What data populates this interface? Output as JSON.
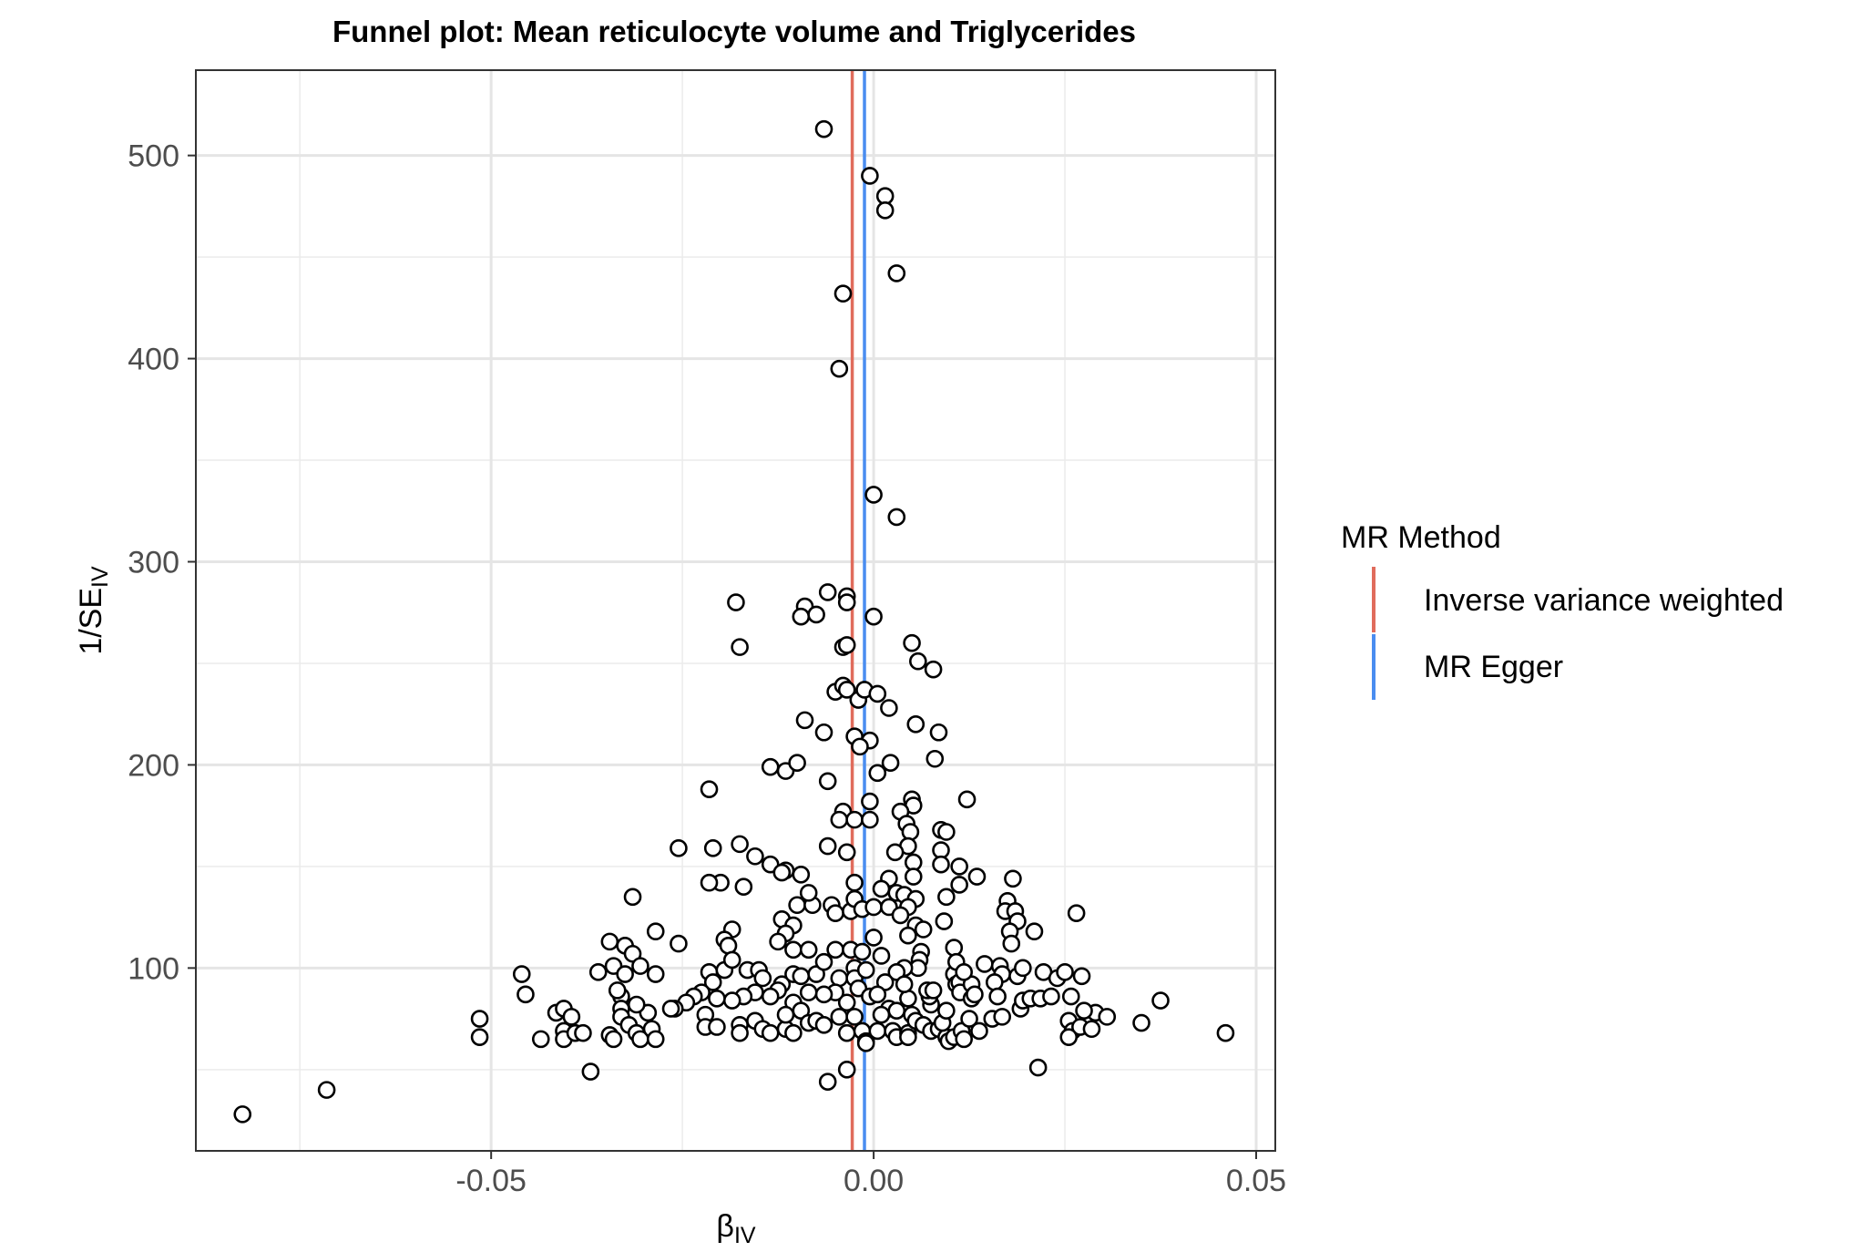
{
  "chart_data": {
    "type": "scatter",
    "title": "Funnel plot: Mean reticulocyte volume and Triglycerides",
    "xlabel": {
      "main": "β",
      "sub": "IV"
    },
    "ylabel": {
      "main": "1/SE",
      "sub": "IV"
    },
    "xlim": [
      -0.0886,
      0.0525
    ],
    "ylim": [
      10,
      542
    ],
    "x_ticks": [
      -0.05,
      0.0,
      0.05
    ],
    "x_tick_labels": [
      "-0.05",
      "0.00",
      "0.05"
    ],
    "y_ticks": [
      100,
      200,
      300,
      400,
      500
    ],
    "y_tick_labels": [
      "100",
      "200",
      "300",
      "400",
      "500"
    ],
    "grid": true,
    "legend": {
      "title": "MR Method",
      "position": "right",
      "items": [
        {
          "label": "Inverse variance weighted",
          "color": "#e06c5c"
        },
        {
          "label": "MR Egger",
          "color": "#4a8df0"
        }
      ]
    },
    "reference_lines": [
      {
        "method": "Inverse variance weighted",
        "x": -0.0028,
        "color": "#e06c5c"
      },
      {
        "method": "MR Egger",
        "x": -0.0012,
        "color": "#4a8df0"
      }
    ],
    "points": [
      [
        -0.0065,
        513
      ],
      [
        -0.0005,
        490
      ],
      [
        0.0015,
        480
      ],
      [
        0.0015,
        473
      ],
      [
        0.003,
        442
      ],
      [
        -0.004,
        432
      ],
      [
        -0.0045,
        395
      ],
      [
        0.0,
        333
      ],
      [
        0.003,
        322
      ],
      [
        -0.018,
        280
      ],
      [
        -0.006,
        285
      ],
      [
        -0.0035,
        283
      ],
      [
        -0.0035,
        280
      ],
      [
        -0.009,
        278
      ],
      [
        -0.0095,
        273
      ],
      [
        -0.0075,
        274
      ],
      [
        0.0,
        273
      ],
      [
        -0.0175,
        258
      ],
      [
        -0.004,
        258
      ],
      [
        -0.0035,
        259
      ],
      [
        0.005,
        260
      ],
      [
        0.0058,
        251
      ],
      [
        0.0078,
        247
      ],
      [
        -0.005,
        236
      ],
      [
        -0.004,
        239
      ],
      [
        -0.0035,
        237
      ],
      [
        -0.002,
        232
      ],
      [
        -0.0012,
        237
      ],
      [
        0.0005,
        235
      ],
      [
        0.002,
        228
      ],
      [
        -0.009,
        222
      ],
      [
        -0.0065,
        216
      ],
      [
        -0.0025,
        214
      ],
      [
        -0.0005,
        212
      ],
      [
        -0.0018,
        209
      ],
      [
        0.0055,
        220
      ],
      [
        0.0085,
        216
      ],
      [
        -0.0135,
        199
      ],
      [
        -0.0115,
        197
      ],
      [
        -0.01,
        201
      ],
      [
        -0.006,
        192
      ],
      [
        0.0005,
        196
      ],
      [
        0.0022,
        201
      ],
      [
        0.008,
        203
      ],
      [
        -0.0215,
        188
      ],
      [
        -0.004,
        177
      ],
      [
        -0.0045,
        173
      ],
      [
        -0.0025,
        173
      ],
      [
        -0.0005,
        182
      ],
      [
        -0.0005,
        173
      ],
      [
        0.005,
        183
      ],
      [
        0.0052,
        180
      ],
      [
        0.0035,
        177
      ],
      [
        0.0043,
        171
      ],
      [
        0.0048,
        167
      ],
      [
        0.0122,
        183
      ],
      [
        0.0088,
        168
      ],
      [
        0.0095,
        167
      ],
      [
        -0.0255,
        159
      ],
      [
        -0.021,
        159
      ],
      [
        -0.0175,
        161
      ],
      [
        -0.006,
        160
      ],
      [
        -0.0035,
        157
      ],
      [
        0.0045,
        160
      ],
      [
        0.0028,
        157
      ],
      [
        0.0052,
        152
      ],
      [
        0.0088,
        158
      ],
      [
        0.0088,
        151
      ],
      [
        0.0112,
        150
      ],
      [
        -0.0135,
        151
      ],
      [
        -0.0155,
        155
      ],
      [
        -0.0115,
        148
      ],
      [
        -0.012,
        147
      ],
      [
        -0.0095,
        146
      ],
      [
        -0.02,
        142
      ],
      [
        -0.0215,
        142
      ],
      [
        -0.017,
        140
      ],
      [
        -0.0025,
        142
      ],
      [
        0.002,
        144
      ],
      [
        0.0052,
        145
      ],
      [
        0.0135,
        145
      ],
      [
        0.0112,
        141
      ],
      [
        0.0182,
        144
      ],
      [
        0.0095,
        135
      ],
      [
        -0.0315,
        135
      ],
      [
        -0.01,
        131
      ],
      [
        -0.008,
        131
      ],
      [
        -0.0085,
        137
      ],
      [
        -0.0055,
        131
      ],
      [
        -0.005,
        127
      ],
      [
        -0.003,
        128
      ],
      [
        -0.0025,
        134
      ],
      [
        -0.0015,
        129
      ],
      [
        0.0,
        130
      ],
      [
        0.001,
        139
      ],
      [
        0.002,
        130
      ],
      [
        0.003,
        137
      ],
      [
        0.004,
        136
      ],
      [
        0.0055,
        134
      ],
      [
        0.0045,
        130
      ],
      [
        0.0035,
        126
      ],
      [
        0.0055,
        121
      ],
      [
        0.0065,
        119
      ],
      [
        0.0045,
        116
      ],
      [
        0.0175,
        133
      ],
      [
        0.0172,
        128
      ],
      [
        0.0185,
        128
      ],
      [
        0.0188,
        123
      ],
      [
        0.0178,
        118
      ],
      [
        0.018,
        112
      ],
      [
        0.021,
        118
      ],
      [
        0.0265,
        127
      ],
      [
        0.0092,
        123
      ],
      [
        -0.0285,
        118
      ],
      [
        -0.0255,
        112
      ],
      [
        -0.0185,
        119
      ],
      [
        -0.0195,
        114
      ],
      [
        -0.019,
        111
      ],
      [
        -0.012,
        124
      ],
      [
        -0.0105,
        121
      ],
      [
        -0.0115,
        117
      ],
      [
        -0.0125,
        113
      ],
      [
        -0.0105,
        109
      ],
      [
        -0.0085,
        109
      ],
      [
        -0.005,
        109
      ],
      [
        -0.003,
        109
      ],
      [
        -0.0015,
        108
      ],
      [
        0.0,
        115
      ],
      [
        0.001,
        106
      ],
      [
        0.0062,
        108
      ],
      [
        0.006,
        104
      ],
      [
        0.0058,
        100
      ],
      [
        0.004,
        100
      ],
      [
        0.003,
        98
      ],
      [
        0.0015,
        93
      ],
      [
        0.0105,
        110
      ],
      [
        -0.0345,
        113
      ],
      [
        -0.0325,
        111
      ],
      [
        -0.0315,
        107
      ],
      [
        -0.036,
        98
      ],
      [
        -0.034,
        101
      ],
      [
        -0.0305,
        101
      ],
      [
        -0.0325,
        97
      ],
      [
        -0.0285,
        97
      ],
      [
        -0.0215,
        98
      ],
      [
        -0.021,
        93
      ],
      [
        -0.0195,
        99
      ],
      [
        -0.0185,
        104
      ],
      [
        -0.0165,
        99
      ],
      [
        -0.015,
        99
      ],
      [
        -0.0145,
        95
      ],
      [
        -0.012,
        92
      ],
      [
        -0.0105,
        97
      ],
      [
        -0.0095,
        96
      ],
      [
        -0.0075,
        97
      ],
      [
        -0.0065,
        103
      ],
      [
        -0.0045,
        95
      ],
      [
        -0.0025,
        100
      ],
      [
        -0.0025,
        95
      ],
      [
        -0.001,
        99
      ],
      [
        -0.002,
        90
      ],
      [
        -0.0005,
        86
      ],
      [
        0.0005,
        87
      ],
      [
        -0.0035,
        83
      ],
      [
        -0.005,
        88
      ],
      [
        -0.0065,
        87
      ],
      [
        -0.0085,
        88
      ],
      [
        -0.0105,
        83
      ],
      [
        -0.0125,
        89
      ],
      [
        -0.0135,
        86
      ],
      [
        -0.0155,
        88
      ],
      [
        -0.017,
        86
      ],
      [
        -0.0185,
        84
      ],
      [
        -0.0205,
        85
      ],
      [
        -0.0225,
        88
      ],
      [
        -0.0235,
        86
      ],
      [
        -0.0245,
        83
      ],
      [
        -0.026,
        80
      ],
      [
        -0.0295,
        78
      ],
      [
        -0.031,
        82
      ],
      [
        -0.033,
        86
      ],
      [
        -0.033,
        80
      ],
      [
        -0.033,
        76
      ],
      [
        -0.0335,
        89
      ],
      [
        -0.046,
        97
      ],
      [
        -0.0455,
        87
      ],
      [
        -0.0515,
        75
      ],
      [
        -0.0515,
        66
      ],
      [
        -0.0415,
        78
      ],
      [
        -0.0405,
        80
      ],
      [
        -0.0395,
        76
      ],
      [
        -0.0405,
        69
      ],
      [
        -0.0405,
        65
      ],
      [
        -0.039,
        68
      ],
      [
        -0.038,
        68
      ],
      [
        -0.0435,
        65
      ],
      [
        -0.0345,
        67
      ],
      [
        -0.034,
        65
      ],
      [
        -0.032,
        72
      ],
      [
        -0.031,
        68
      ],
      [
        -0.0305,
        65
      ],
      [
        -0.029,
        70
      ],
      [
        -0.0285,
        65
      ],
      [
        -0.0265,
        80
      ],
      [
        -0.022,
        77
      ],
      [
        -0.022,
        71
      ],
      [
        -0.0205,
        71
      ],
      [
        -0.0175,
        72
      ],
      [
        -0.0175,
        68
      ],
      [
        -0.0155,
        74
      ],
      [
        -0.0145,
        70
      ],
      [
        -0.0135,
        68
      ],
      [
        -0.0115,
        70
      ],
      [
        -0.0115,
        77
      ],
      [
        -0.0105,
        68
      ],
      [
        -0.0095,
        79
      ],
      [
        -0.0085,
        73
      ],
      [
        -0.0075,
        74
      ],
      [
        -0.0065,
        72
      ],
      [
        -0.0045,
        76
      ],
      [
        -0.0035,
        68
      ],
      [
        -0.0025,
        76
      ],
      [
        -0.0015,
        69
      ],
      [
        -0.001,
        64
      ],
      [
        -0.001,
        63
      ],
      [
        0.0005,
        69
      ],
      [
        0.0025,
        69
      ],
      [
        0.003,
        66
      ],
      [
        0.0045,
        68
      ],
      [
        0.0045,
        66
      ],
      [
        0.002,
        80
      ],
      [
        0.001,
        77
      ],
      [
        0.005,
        77
      ],
      [
        0.0055,
        74
      ],
      [
        0.0065,
        72
      ],
      [
        0.0075,
        69
      ],
      [
        0.0085,
        70
      ],
      [
        0.0095,
        66
      ],
      [
        0.0098,
        64
      ],
      [
        0.0105,
        66
      ],
      [
        0.0115,
        69
      ],
      [
        0.0118,
        65
      ],
      [
        0.0125,
        75
      ],
      [
        0.0138,
        69
      ],
      [
        0.0155,
        75
      ],
      [
        0.0168,
        76
      ],
      [
        0.0192,
        80
      ],
      [
        0.0195,
        84
      ],
      [
        0.0205,
        85
      ],
      [
        0.0218,
        85
      ],
      [
        0.0232,
        86
      ],
      [
        0.0258,
        86
      ],
      [
        0.0255,
        74
      ],
      [
        0.026,
        69
      ],
      [
        0.027,
        71
      ],
      [
        0.0285,
        70
      ],
      [
        0.0255,
        66
      ],
      [
        0.029,
        78
      ],
      [
        0.0275,
        79
      ],
      [
        0.0305,
        76
      ],
      [
        0.035,
        73
      ],
      [
        0.0375,
        84
      ],
      [
        0.046,
        68
      ],
      [
        0.0215,
        51
      ],
      [
        0.009,
        73
      ],
      [
        0.0095,
        79
      ],
      [
        0.0075,
        82
      ],
      [
        0.0073,
        86
      ],
      [
        0.007,
        89
      ],
      [
        0.0078,
        89
      ],
      [
        0.0045,
        85
      ],
      [
        0.004,
        92
      ],
      [
        0.003,
        79
      ],
      [
        0.0105,
        97
      ],
      [
        0.0108,
        92
      ],
      [
        0.0112,
        93
      ],
      [
        0.0113,
        88
      ],
      [
        0.0128,
        92
      ],
      [
        0.0128,
        85
      ],
      [
        0.0132,
        87
      ],
      [
        0.0145,
        102
      ],
      [
        0.0165,
        101
      ],
      [
        0.0168,
        97
      ],
      [
        0.0158,
        93
      ],
      [
        0.0162,
        86
      ],
      [
        0.0188,
        96
      ],
      [
        0.0195,
        100
      ],
      [
        0.0222,
        98
      ],
      [
        0.024,
        95
      ],
      [
        0.025,
        98
      ],
      [
        0.0272,
        96
      ],
      [
        0.0108,
        103
      ],
      [
        0.0118,
        98
      ],
      [
        -0.037,
        49
      ],
      [
        -0.006,
        44
      ],
      [
        -0.0035,
        50
      ],
      [
        -0.0715,
        40
      ],
      [
        -0.0825,
        28
      ]
    ]
  }
}
